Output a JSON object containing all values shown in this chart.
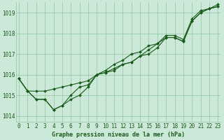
{
  "xlabel": "Graphe pression niveau de la mer (hPa)",
  "ylim": [
    1013.7,
    1019.5
  ],
  "xlim": [
    -0.3,
    23.3
  ],
  "yticks": [
    1014,
    1015,
    1016,
    1017,
    1018,
    1019
  ],
  "xticks": [
    0,
    1,
    2,
    3,
    4,
    5,
    6,
    7,
    8,
    9,
    10,
    11,
    12,
    13,
    14,
    15,
    16,
    17,
    18,
    19,
    20,
    21,
    22,
    23
  ],
  "background_color": "#cce8d8",
  "grid_color": "#99ccaa",
  "line_color": "#1a5c1a",
  "series": [
    [
      1015.8,
      1015.2,
      1014.8,
      1014.8,
      1014.3,
      1014.5,
      1014.8,
      1015.0,
      1015.4,
      1016.0,
      1016.1,
      1016.2,
      1016.5,
      1016.6,
      1016.9,
      1017.0,
      1017.3,
      1017.8,
      1017.8,
      1017.6,
      1018.6,
      1019.0,
      1019.2,
      1019.3
    ],
    [
      1015.8,
      1015.2,
      1014.8,
      1014.8,
      1014.3,
      1014.5,
      1015.0,
      1015.4,
      1015.5,
      1016.0,
      1016.2,
      1016.5,
      1016.7,
      1017.0,
      1017.1,
      1017.4,
      1017.5,
      1017.8,
      1017.8,
      1017.6,
      1018.6,
      1019.0,
      1019.2,
      1019.3
    ],
    [
      1015.8,
      1015.2,
      1015.2,
      1015.2,
      1015.3,
      1015.4,
      1015.5,
      1015.6,
      1015.7,
      1016.0,
      1016.1,
      1016.3,
      1016.5,
      1016.6,
      1016.9,
      1017.2,
      1017.5,
      1017.9,
      1017.9,
      1017.7,
      1018.7,
      1019.1,
      1019.2,
      1019.4
    ]
  ],
  "font_family": "monospace",
  "tick_fontsize": 5.5,
  "xlabel_fontsize": 6.0,
  "marker_size": 2.0,
  "line_width": 0.8
}
